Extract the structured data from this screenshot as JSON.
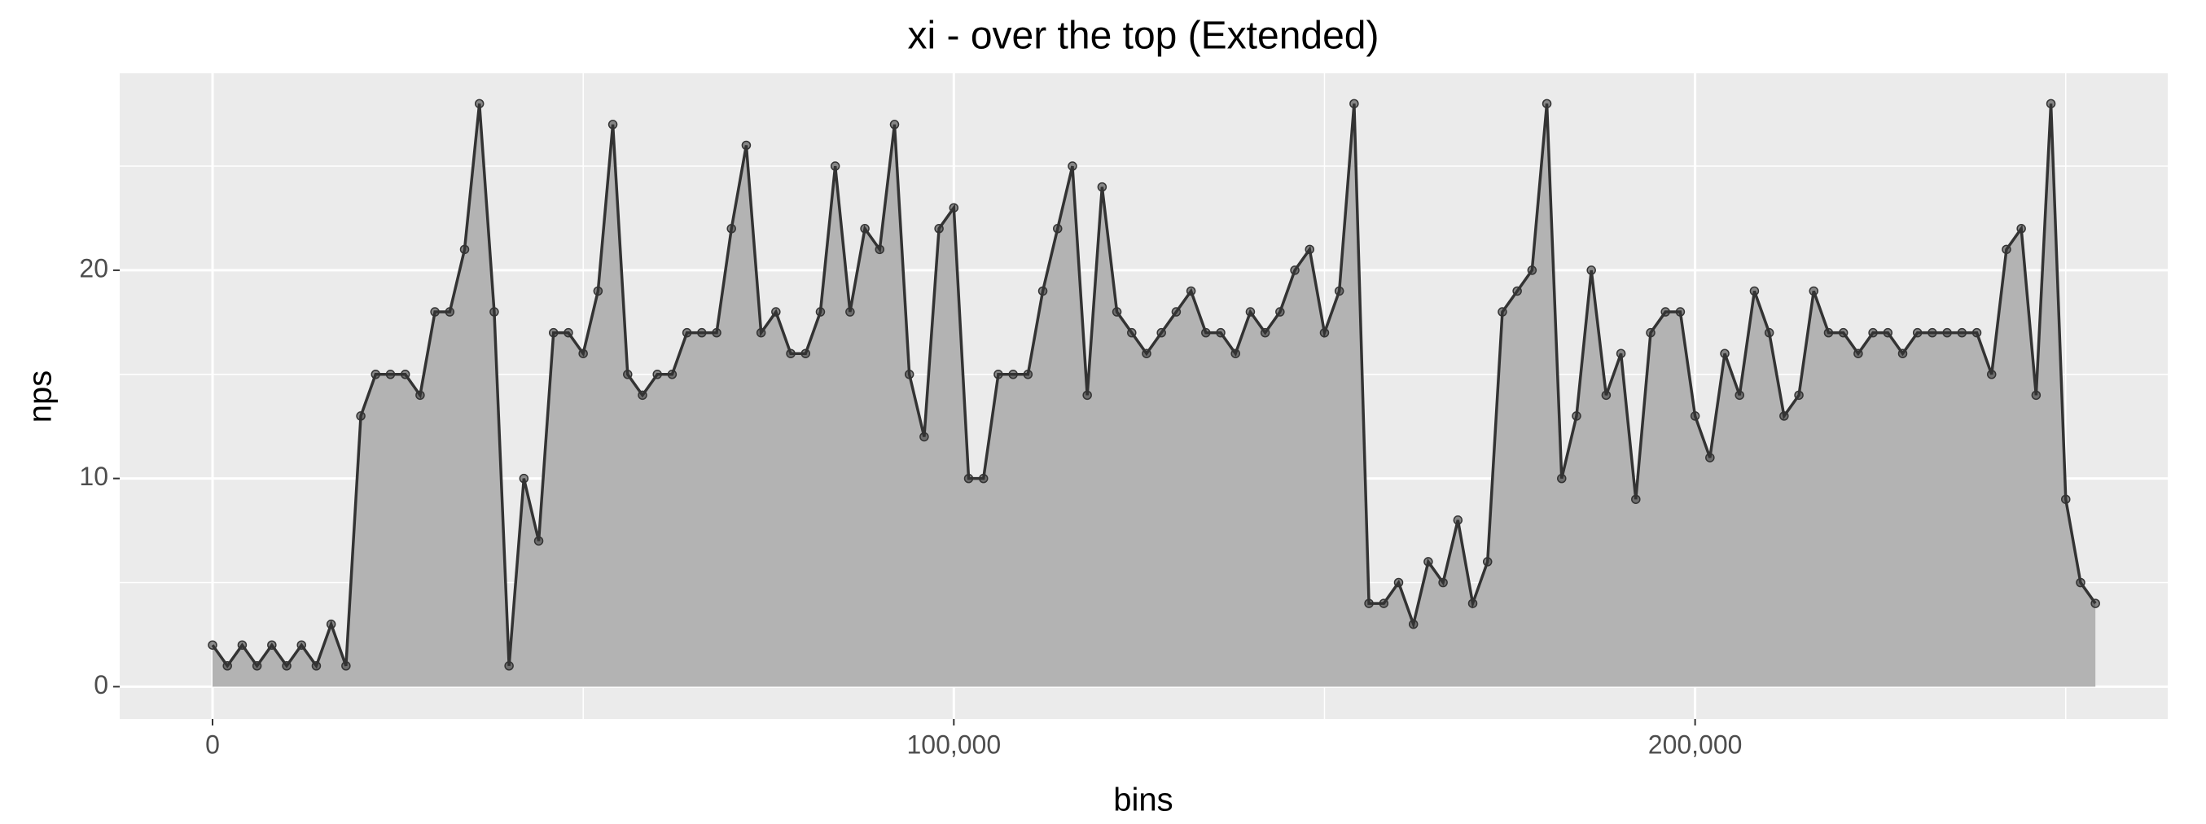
{
  "chart_data": {
    "type": "area",
    "title": "xi - over the top (Extended)",
    "x_label": "bins",
    "y_label": "nps",
    "x": [
      0,
      2000,
      4000,
      6000,
      8000,
      10000,
      12000,
      14000,
      16000,
      18000,
      20000,
      22000,
      24000,
      26000,
      28000,
      30000,
      32000,
      34000,
      36000,
      38000,
      40000,
      42000,
      44000,
      46000,
      48000,
      50000,
      52000,
      54000,
      56000,
      58000,
      60000,
      62000,
      64000,
      66000,
      68000,
      70000,
      72000,
      74000,
      76000,
      78000,
      80000,
      82000,
      84000,
      86000,
      88000,
      90000,
      92000,
      94000,
      96000,
      98000,
      100000,
      102000,
      104000,
      106000,
      108000,
      110000,
      112000,
      114000,
      116000,
      118000,
      120000,
      122000,
      124000,
      126000,
      128000,
      130000,
      132000,
      134000,
      136000,
      138000,
      140000,
      142000,
      144000,
      146000,
      148000,
      150000,
      152000,
      154000,
      156000,
      158000,
      160000,
      162000,
      164000,
      166000,
      168000,
      170000,
      172000,
      174000,
      176000,
      178000,
      180000,
      182000,
      184000,
      186000,
      188000,
      190000,
      192000,
      194000,
      196000,
      198000,
      200000,
      202000,
      204000,
      206000,
      208000,
      210000,
      212000,
      214000,
      216000,
      218000,
      220000,
      222000,
      224000,
      226000,
      228000,
      230000,
      232000,
      234000,
      236000,
      238000,
      240000,
      242000,
      244000,
      246000,
      248000,
      250000,
      252000,
      254000
    ],
    "values": [
      2,
      1,
      2,
      1,
      2,
      1,
      2,
      1,
      3,
      1,
      13,
      15,
      15,
      15,
      14,
      18,
      18,
      21,
      28,
      18,
      1,
      10,
      7,
      17,
      17,
      16,
      19,
      27,
      15,
      14,
      15,
      15,
      17,
      17,
      17,
      22,
      26,
      17,
      18,
      16,
      16,
      18,
      25,
      18,
      22,
      21,
      27,
      15,
      12,
      22,
      23,
      10,
      10,
      15,
      15,
      15,
      19,
      22,
      25,
      14,
      24,
      18,
      17,
      16,
      17,
      18,
      19,
      17,
      17,
      16,
      18,
      17,
      18,
      20,
      21,
      17,
      19,
      28,
      4,
      4,
      5,
      3,
      6,
      5,
      8,
      4,
      6,
      18,
      19,
      20,
      28,
      10,
      13,
      20,
      14,
      16,
      9,
      17,
      18,
      18,
      13,
      11,
      16,
      14,
      19,
      17,
      13,
      14,
      19,
      17,
      17,
      16,
      17,
      17,
      16,
      17,
      17,
      17,
      17,
      17,
      15,
      21,
      22,
      14,
      28,
      9,
      5,
      4
    ],
    "xlim": [
      -12524,
      263757
    ],
    "ylim": [
      -1.55,
      29.46
    ],
    "xticks": [
      0,
      {
        "value": 100000,
        "label": "100,000"
      },
      {
        "value": 200000,
        "label": "200,000"
      }
    ],
    "yticks": [
      0,
      10,
      20
    ],
    "grid": true,
    "color": "#333333",
    "fill": "#b3b3b3"
  }
}
